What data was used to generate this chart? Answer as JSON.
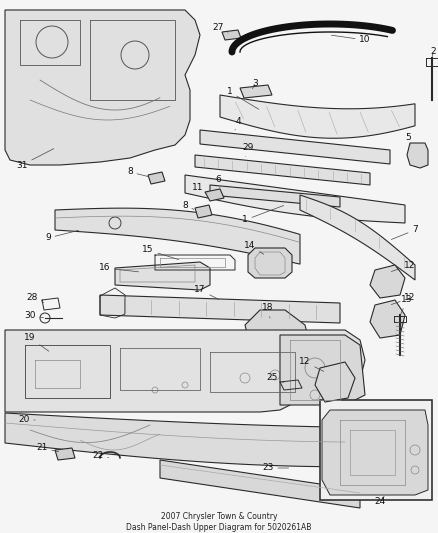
{
  "background_color": "#f5f5f5",
  "line_color": "#2a2a2a",
  "label_color": "#111111",
  "label_fontsize": 6.5,
  "title": "2007 Chrysler Town & Country\nDash Panel-Dash Upper Diagram for 5020261AB",
  "title_fontsize": 5.5
}
